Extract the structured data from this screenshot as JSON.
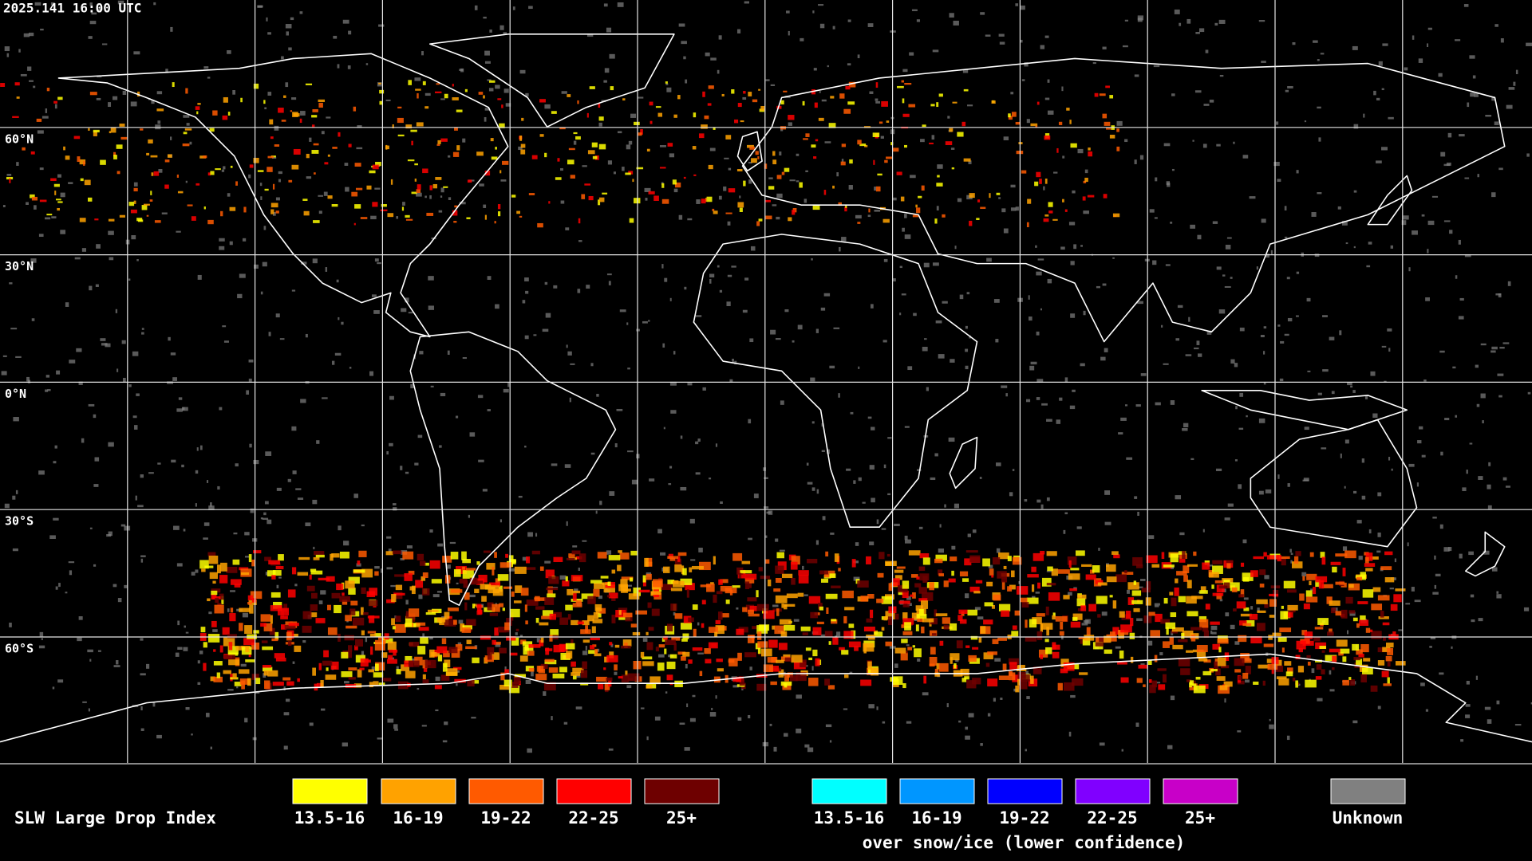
{
  "header": {
    "timestamp": "2025.141 16:00 UTC"
  },
  "grid": {
    "lat_labels": [
      "60°N",
      "30°N",
      "0°N",
      "30°S",
      "60°S"
    ]
  },
  "legend": {
    "title": "SLW Large Drop Index",
    "liquid": [
      {
        "label": "13.5-16",
        "color": "#ffff00"
      },
      {
        "label": "16-19",
        "color": "#ffa200"
      },
      {
        "label": "19-22",
        "color": "#ff5a00"
      },
      {
        "label": "22-25",
        "color": "#ff0000"
      },
      {
        "label": "25+",
        "color": "#6e0000"
      }
    ],
    "snow_ice": [
      {
        "label": "13.5-16",
        "color": "#00ffff"
      },
      {
        "label": "16-19",
        "color": "#0096ff"
      },
      {
        "label": "19-22",
        "color": "#0000ff"
      },
      {
        "label": "22-25",
        "color": "#8000ff"
      },
      {
        "label": "25+",
        "color": "#c800c8"
      }
    ],
    "snow_ice_caption": "over snow/ice (lower confidence)",
    "unknown": {
      "label": "Unknown",
      "color": "#808080"
    }
  }
}
